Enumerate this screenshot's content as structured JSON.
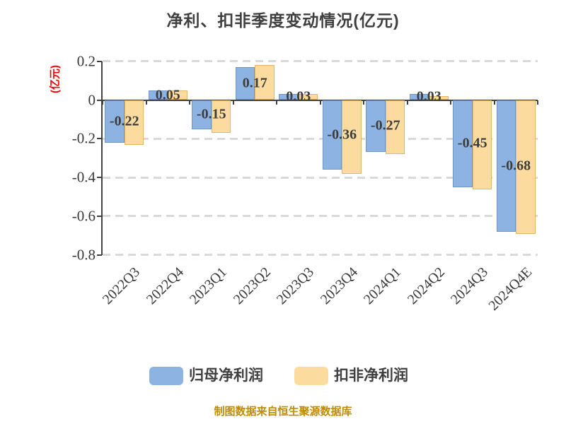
{
  "title": "净利、扣非季度变动情况(亿元)",
  "y_axis": {
    "unit_label": "(亿元)",
    "tick_labels": [
      "0.2",
      "0",
      "-0.2",
      "-0.4",
      "-0.6",
      "-0.8"
    ]
  },
  "legend": {
    "items": [
      {
        "label": "归母净利润",
        "color": "#8DB3E2"
      },
      {
        "label": "扣非净利润",
        "color": "#FCDB9F"
      }
    ]
  },
  "footer": "制图数据来自恒生聚源数据库",
  "chart_data": {
    "type": "bar",
    "title": "净利、扣非季度变动情况(亿元)",
    "xlabel": "",
    "ylabel": "(亿元)",
    "categories": [
      "2022Q3",
      "2022Q4",
      "2023Q1",
      "2023Q2",
      "2023Q3",
      "2023Q4",
      "2024Q1",
      "2024Q2",
      "2024Q3",
      "2024Q4E"
    ],
    "series": [
      {
        "name": "归母净利润",
        "color": "#8DB3E2",
        "border_color": "#6F97C6",
        "values": [
          -0.22,
          0.05,
          -0.15,
          0.17,
          0.03,
          -0.36,
          -0.27,
          0.03,
          -0.45,
          -0.68
        ]
      },
      {
        "name": "扣非净利润",
        "color": "#FCDB9F",
        "border_color": "#E2B567",
        "values": [
          -0.23,
          0.05,
          -0.17,
          0.18,
          0.03,
          -0.38,
          -0.28,
          0.02,
          -0.46,
          -0.69
        ]
      }
    ],
    "bar_labels": [
      "-0.22",
      "0.05",
      "-0.15",
      "0.17",
      "0.03",
      "-0.36",
      "-0.27",
      "0.03",
      "-0.45",
      "-0.68"
    ],
    "ylim": [
      -0.8,
      0.2
    ],
    "yticks": [
      0.2,
      0,
      -0.2,
      -0.4,
      -0.6,
      -0.8
    ],
    "grid": "horizontal-dashed",
    "legend_position": "bottom",
    "colors": {
      "axis": "#404040",
      "grid": "#D9D9D9",
      "text": "#3F3F3F",
      "unit_label": "#FF0000",
      "footer": "#BF8B00"
    }
  }
}
